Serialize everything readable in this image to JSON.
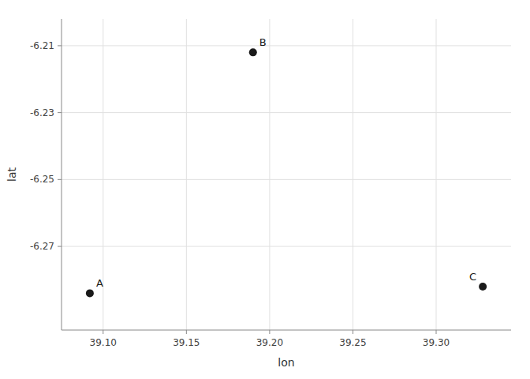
{
  "chart_data": {
    "type": "scatter",
    "x": [
      39.092,
      39.19,
      39.328
    ],
    "values": [
      -6.284,
      -6.212,
      -6.282
    ],
    "labels": [
      "A",
      "B",
      "C"
    ],
    "x_label": "lon",
    "y_label": "lat",
    "color": "#1a1a1a",
    "xlim": [
      39.075,
      39.345
    ],
    "ylim": [
      -6.295,
      -6.202
    ],
    "xticks": [
      {
        "value": 39.1,
        "label": "39.10"
      },
      39.15,
      {
        "value": 39.2,
        "label": "39.20"
      },
      39.25,
      {
        "value": 39.3,
        "label": "39.30"
      }
    ],
    "yticks": [
      -6.21,
      -6.23,
      -6.25,
      -6.27
    ],
    "grid": true
  }
}
